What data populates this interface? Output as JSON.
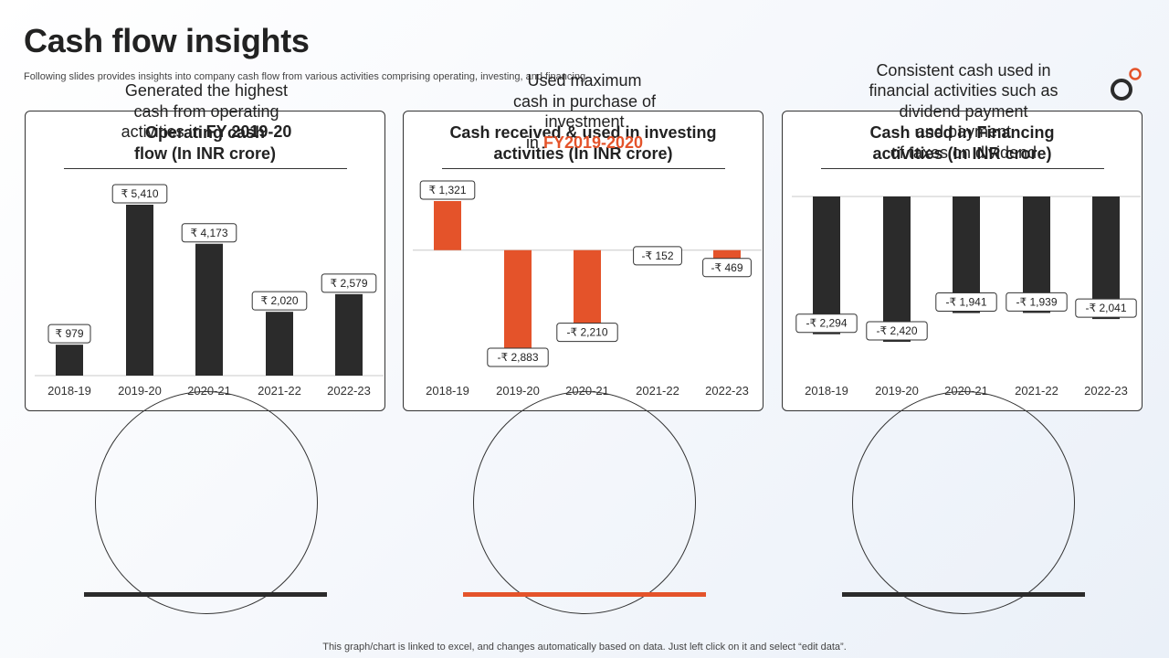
{
  "header": {
    "title": "Cash flow insights",
    "subtitle": "Following slides provides insights into company cash flow from various activities comprising operating, investing, and financing"
  },
  "colors": {
    "dark": "#2b2b2b",
    "accent": "#e4532a",
    "label_border": "#333333"
  },
  "chart_data": [
    {
      "type": "bar",
      "title_lines": [
        "Operating cash",
        "flow (In INR crore)"
      ],
      "categories": [
        "2018-19",
        "2019-20",
        "2020-21",
        "2021-22",
        "2022-23"
      ],
      "values": [
        979,
        5410,
        4173,
        2020,
        2579
      ],
      "labels": [
        "₹ 979",
        "₹ 5,410",
        "₹ 4,173",
        "₹ 2,020",
        "₹ 2,579"
      ],
      "ylim": [
        0,
        5410
      ],
      "color": "dark"
    },
    {
      "type": "bar",
      "title_lines": [
        "Cash received & used in investing",
        "activities (In INR crore)"
      ],
      "categories": [
        "2018-19",
        "2019-20",
        "2020-21",
        "2021-22",
        "2022-23"
      ],
      "values": [
        1321,
        -2883,
        -2210,
        -152,
        -469
      ],
      "labels": [
        "₹ 1,321",
        "-₹ 2,883",
        "-₹ 2,210",
        "-₹ 152",
        "-₹ 469"
      ],
      "ylim": [
        -2883,
        1321
      ],
      "color": "accent"
    },
    {
      "type": "bar",
      "title_lines": [
        "Cash used in Financing",
        "activities (In INR crore)"
      ],
      "categories": [
        "2018-19",
        "2019-20",
        "2020-21",
        "2021-22",
        "2022-23"
      ],
      "values": [
        -2294,
        -2420,
        -1941,
        -1939,
        -2041
      ],
      "labels": [
        "-₹ 2,294",
        "-₹ 2,420",
        "-₹ 1,941",
        "-₹ 1,939",
        "-₹ 2,041"
      ],
      "ylim": [
        -2420,
        0
      ],
      "color": "dark"
    }
  ],
  "insights": [
    {
      "lines": [
        "Generated the highest",
        "cash from operating"
      ],
      "last_prefix": "activities in ",
      "highlight": "FY 2019-20",
      "highlight_color": "dark"
    },
    {
      "lines": [
        "Used maximum",
        "cash in purchase of",
        "investment"
      ],
      "last_prefix": "in ",
      "highlight": "FY2019-2020",
      "highlight_color": "accent"
    },
    {
      "lines": [
        "Consistent cash used in",
        "financial activities such as",
        "dividend payment",
        "and payment",
        "of taxes on dividend"
      ],
      "last_prefix": "",
      "highlight": "",
      "highlight_color": "dark"
    }
  ],
  "footer": "This graph/chart is linked to excel,  and changes automatically based on data. Just left click on it and select “edit data”."
}
